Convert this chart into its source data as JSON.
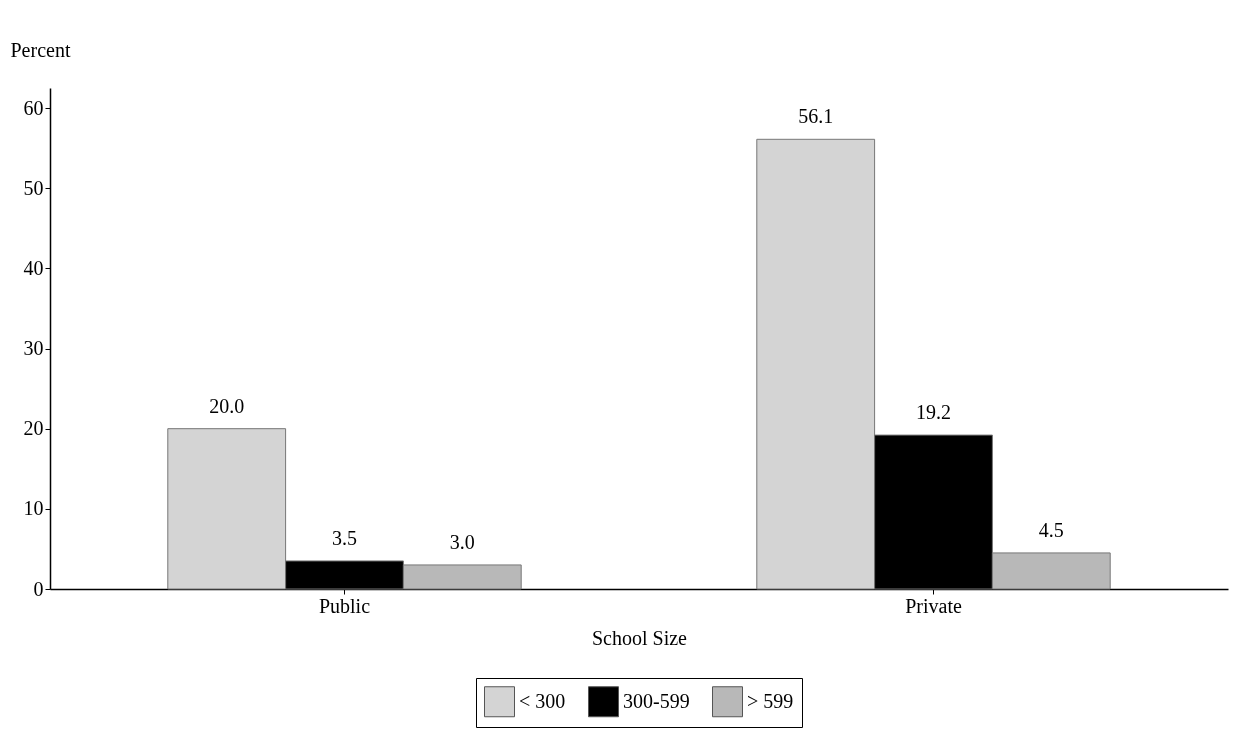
{
  "chart_data": {
    "type": "bar",
    "xlabel": "School Size",
    "ylabel": "Percent",
    "categories": [
      "Public",
      "Private"
    ],
    "series": [
      {
        "name": "< 300",
        "color": "#d4d4d4",
        "values": [
          20.0,
          56.1
        ],
        "value_labels": [
          "20.0",
          "56.1"
        ]
      },
      {
        "name": "300-599",
        "color": "#000000",
        "values": [
          3.5,
          19.2
        ],
        "value_labels": [
          "3.5",
          "19.2"
        ]
      },
      {
        "name": "> 599",
        "color": "#b8b8b8",
        "values": [
          3.0,
          4.5
        ],
        "value_labels": [
          "3.0",
          "4.5"
        ]
      }
    ],
    "ylim": [
      0,
      62.5
    ],
    "yticks": [
      0,
      10,
      20,
      30,
      40,
      50,
      60
    ],
    "grid": false,
    "legend": "bottom"
  }
}
